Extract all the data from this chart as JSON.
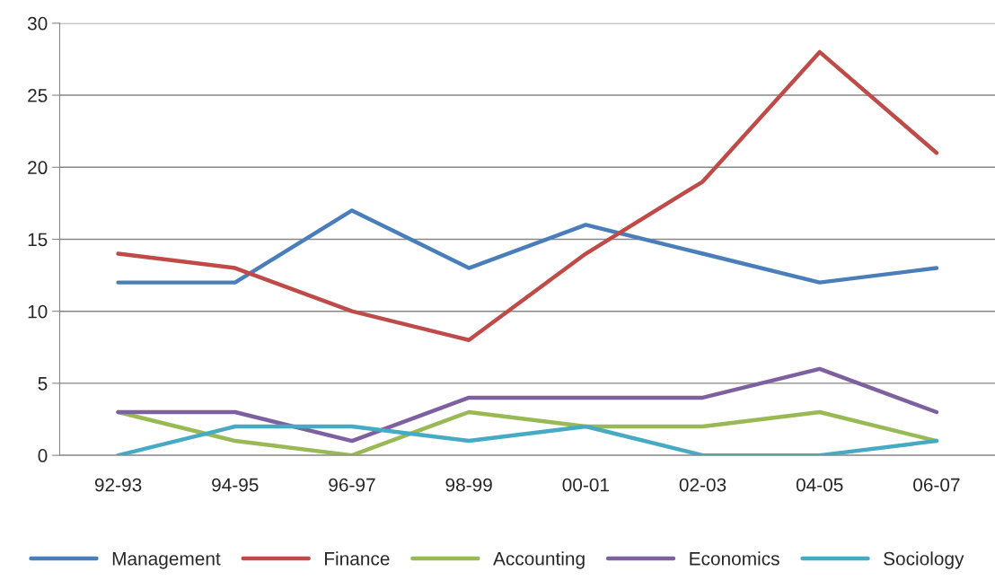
{
  "chart_data": {
    "type": "line",
    "categories": [
      "92-93",
      "94-95",
      "96-97",
      "98-99",
      "00-01",
      "02-03",
      "04-05",
      "06-07"
    ],
    "series": [
      {
        "name": "Management",
        "color": "#4a7ebb",
        "values": [
          12,
          12,
          17,
          13,
          16,
          14,
          12,
          13
        ]
      },
      {
        "name": "Finance",
        "color": "#be4b48",
        "values": [
          14,
          13,
          10,
          8,
          14,
          19,
          28,
          21
        ]
      },
      {
        "name": "Accounting",
        "color": "#98b954",
        "values": [
          3,
          1,
          0,
          3,
          2,
          2,
          3,
          1
        ]
      },
      {
        "name": "Economics",
        "color": "#7d60a0",
        "values": [
          3,
          3,
          1,
          4,
          4,
          4,
          6,
          3
        ]
      },
      {
        "name": "Sociology",
        "color": "#46aac5",
        "values": [
          0,
          2,
          2,
          1,
          2,
          0,
          0,
          1
        ]
      }
    ],
    "ylim": [
      0,
      30
    ],
    "yticks": [
      0,
      5,
      10,
      15,
      20,
      25,
      30
    ],
    "grid": "y",
    "legend": "bottom",
    "marker": "none",
    "line_style": "solid"
  }
}
